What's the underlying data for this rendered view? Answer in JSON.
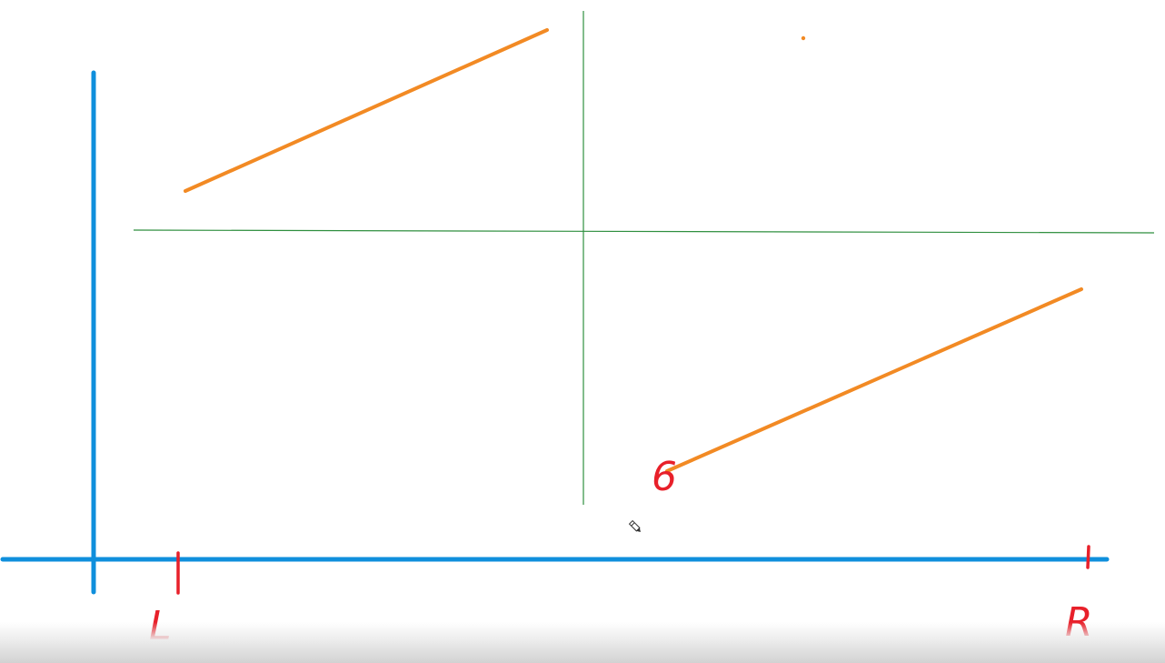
{
  "labels": {
    "left": "L",
    "right": "R",
    "mark": "6"
  },
  "colors": {
    "axis": "#0f8fdc",
    "guide": "#2f8f3f",
    "segment": "#f28a24",
    "ink": "#e8202a"
  },
  "icons": {
    "cursor": "pencil-icon"
  }
}
